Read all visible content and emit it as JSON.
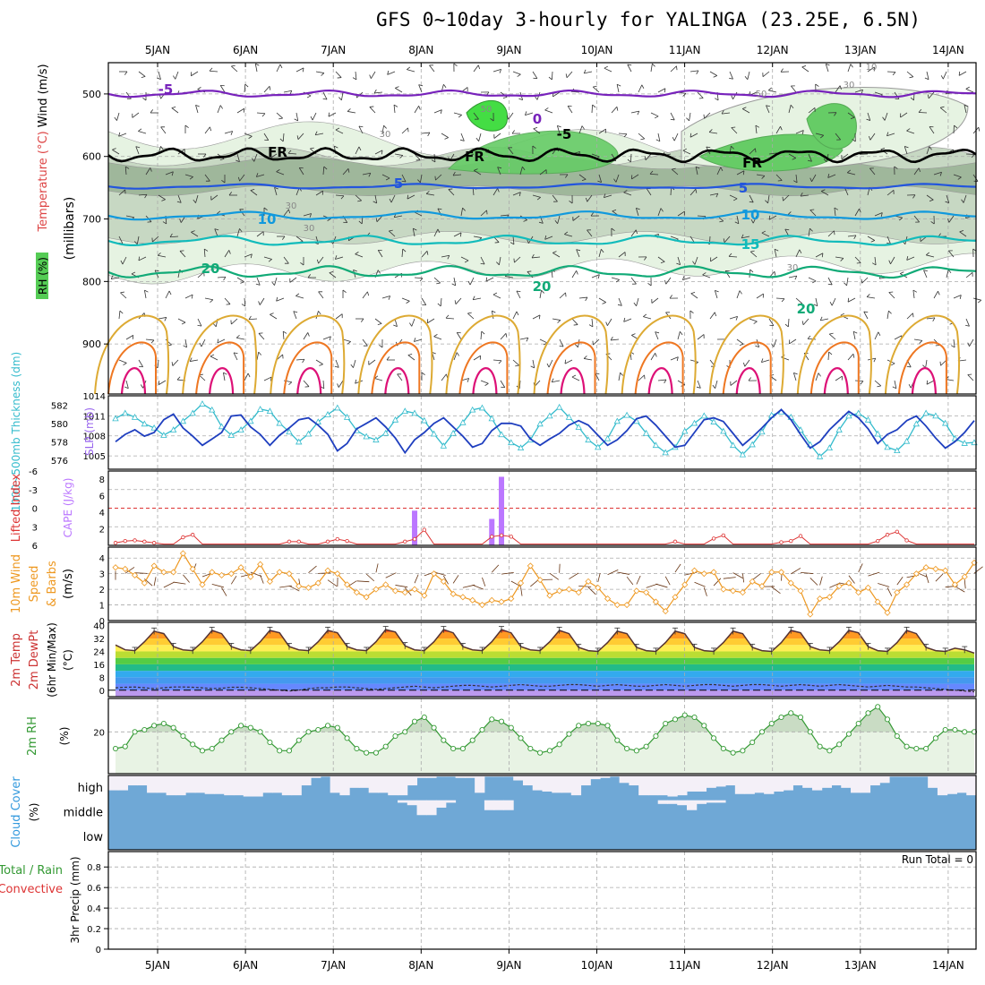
{
  "title": "GFS 0~10day 3-hourly for YALINGA (23.25E, 6.5N)",
  "colors": {
    "rh_light": "#e6f3e2",
    "rh_mid": "#c7d8c3",
    "rh_dark": "#9fb79b",
    "rh_green": "#66cc66",
    "rh_bright": "#44dd44",
    "thickness": "#1f3fbf",
    "slp": "#33bbcc",
    "li": "#dd3333",
    "cape": "#bb77ff",
    "wind10": "#ee9922",
    "rh2m": "#339933",
    "cloud": "#6fa8d6",
    "cloud_clear": "#f4f0f8"
  },
  "chart_data": [
    {
      "panel": "upper-air",
      "type": "contour",
      "x_ticks": [
        "5JAN",
        "6JAN",
        "7JAN",
        "8JAN",
        "9JAN",
        "10JAN",
        "11JAN",
        "12JAN",
        "13JAN",
        "14JAN"
      ],
      "ylabel_parts": [
        "RH (%)",
        "Temperature (°C)",
        "Wind (m/s)",
        "(millibars)"
      ],
      "y_ticks": [
        500,
        600,
        700,
        800,
        900
      ],
      "ylim": [
        1000,
        450
      ],
      "isotherm_labels": [
        "-5",
        "0",
        "-5",
        "FR",
        "FR",
        "FR",
        "5",
        "5",
        "10",
        "10",
        "15",
        "20",
        "20",
        "20"
      ],
      "rh_labels": [
        "30",
        "30",
        "30",
        "50",
        "50",
        "30",
        "10",
        "30"
      ]
    },
    {
      "panel": "thickness-slp",
      "type": "line",
      "ylabel_left": "1000~500mb Thickness (dm)",
      "ylabel_right": "SLP (mb)",
      "thickness_ticks": [
        576,
        578,
        580,
        582
      ],
      "slp_ticks": [
        1005,
        1008,
        1011,
        1014
      ],
      "series": [
        {
          "name": "1000~500mb Thickness (dm)",
          "values": [
            578.0,
            578.8,
            579.3,
            578.6,
            579.0,
            580.4,
            581.0,
            579.5,
            578.6,
            577.6,
            578.3,
            579.0,
            580.8,
            580.9,
            579.6,
            578.8,
            577.6,
            578.7,
            579.5,
            580.4,
            580.6,
            579.8,
            578.8,
            577.0,
            577.8,
            579.4,
            580.0,
            580.6,
            579.6,
            578.4,
            576.8,
            578.2,
            579.0,
            580.0,
            580.6,
            579.6,
            578.6,
            577.4,
            577.8,
            579.2,
            580.0,
            580.0,
            579.7,
            578.3,
            577.6,
            578.3,
            578.9,
            579.8,
            580.3,
            579.8,
            578.7,
            577.6,
            578.2,
            579.2,
            580.5,
            580.8,
            579.8,
            578.6,
            577.4,
            577.6,
            579.0,
            580.4,
            580.6,
            580.2,
            578.9,
            577.6,
            578.5,
            579.5,
            580.6,
            581.5,
            580.4,
            578.8,
            577.3,
            578.0,
            579.3,
            580.3,
            581.3,
            580.6,
            579.4,
            577.8,
            578.8,
            579.3,
            580.3,
            580.8,
            579.7,
            578.4,
            577.3,
            578.0,
            579.0,
            580.3
          ]
        },
        {
          "name": "SLP (mb)",
          "values": [
            1010.6,
            1011.4,
            1010.8,
            1009.8,
            1009.2,
            1008.1,
            1008.9,
            1010.2,
            1011.4,
            1012.8,
            1011.9,
            1009.4,
            1008.1,
            1008.9,
            1010.2,
            1012.0,
            1011.7,
            1009.9,
            1008.6,
            1007.1,
            1008.3,
            1010.1,
            1011.2,
            1012.2,
            1010.8,
            1008.8,
            1007.9,
            1007.4,
            1008.4,
            1010.4,
            1011.7,
            1011.4,
            1010.3,
            1008.3,
            1006.5,
            1008.4,
            1010.0,
            1011.9,
            1012.2,
            1010.6,
            1008.2,
            1007.0,
            1006.2,
            1007.4,
            1009.8,
            1011.0,
            1012.3,
            1010.8,
            1009.3,
            1007.4,
            1006.3,
            1007.6,
            1010.2,
            1011.1,
            1010.2,
            1008.4,
            1006.6,
            1005.5,
            1006.3,
            1008.7,
            1009.9,
            1011.0,
            1010.1,
            1008.7,
            1006.6,
            1005.2,
            1006.7,
            1008.6,
            1011.1,
            1011.6,
            1010.8,
            1008.9,
            1006.7,
            1004.9,
            1006.2,
            1008.9,
            1011.0,
            1011.4,
            1010.4,
            1008.3,
            1006.3,
            1005.8,
            1007.2,
            1009.8,
            1011.4,
            1011.0,
            1009.9,
            1007.6,
            1006.9,
            1007.0
          ]
        }
      ]
    },
    {
      "panel": "li-cape",
      "type": "bar",
      "ylabel_left": "Lifted Index",
      "ylabel_right": "CAPE (J/kg)",
      "li_ticks": [
        "-6",
        "-3",
        "0",
        "3",
        "6"
      ],
      "cape_ticks": [
        "2",
        "4",
        "6",
        "8"
      ],
      "cape_values": [
        {
          "x_index": 31,
          "value": 4.2
        },
        {
          "x_index": 39,
          "value": 3.2
        },
        {
          "x_index": 40,
          "value": 8.3
        }
      ],
      "li_values": [
        5.6,
        5.3,
        5.2,
        5.4,
        5.6,
        5.8,
        5.8,
        4.7,
        4.3,
        5.8,
        5.8,
        5.8,
        5.8,
        5.8,
        5.8,
        5.8,
        5.8,
        5.8,
        5.4,
        5.4,
        5.8,
        5.8,
        5.4,
        5.0,
        5.3,
        5.8,
        5.8,
        5.8,
        5.8,
        5.8,
        5.4,
        5.0,
        3.5,
        5.8,
        5.8,
        5.8,
        5.8,
        5.8,
        5.8,
        4.6,
        4.4,
        4.6,
        5.8,
        5.8,
        5.8,
        5.8,
        5.8,
        5.8,
        5.8,
        5.8,
        5.8,
        5.8,
        5.8,
        5.8,
        5.8,
        5.8,
        5.8,
        5.8,
        5.4,
        5.8,
        5.8,
        5.8,
        4.9,
        4.4,
        5.8,
        5.8,
        5.8,
        5.8,
        5.8,
        5.5,
        5.3,
        4.5,
        5.8,
        5.8,
        5.8,
        5.8,
        5.8,
        5.8,
        5.8,
        5.3,
        4.3,
        3.8,
        5.2,
        5.8,
        5.8,
        5.8,
        5.8,
        5.8,
        5.8,
        5.8
      ]
    },
    {
      "panel": "wind10m",
      "type": "line",
      "ylabel": "10m Wind Speed & Barbs (m/s)",
      "y_ticks": [
        "0",
        "1",
        "2",
        "3",
        "4"
      ],
      "ylim": [
        0,
        5
      ],
      "values": [
        3.4,
        3.3,
        2.9,
        2.4,
        3.5,
        3.1,
        3.1,
        4.3,
        3.3,
        2.3,
        3.1,
        2.9,
        3.0,
        3.4,
        2.8,
        3.6,
        2.5,
        3.1,
        3.0,
        2.2,
        2.1,
        2.4,
        3.2,
        3.0,
        2.3,
        1.8,
        1.5,
        2.0,
        2.3,
        1.9,
        1.8,
        2.0,
        1.6,
        3.0,
        2.5,
        1.7,
        1.5,
        1.3,
        1.0,
        1.3,
        1.2,
        1.4,
        2.4,
        3.5,
        2.6,
        1.6,
        1.9,
        2.0,
        1.8,
        2.5,
        2.1,
        1.4,
        1.0,
        1.0,
        1.9,
        1.8,
        1.2,
        0.6,
        1.5,
        2.3,
        3.2,
        3.0,
        3.1,
        2.0,
        1.9,
        1.8,
        2.5,
        2.2,
        3.1,
        3.1,
        2.4,
        1.9,
        0.4,
        1.4,
        1.5,
        2.2,
        2.4,
        1.8,
        2.1,
        1.2,
        0.5,
        1.8,
        2.3,
        3.0,
        3.4,
        3.3,
        3.2,
        2.3,
        2.8,
        3.7
      ]
    },
    {
      "panel": "temp-dewpt",
      "type": "area",
      "ylabel": "2m Temp 2m DewPt (6hr Min/Max) (°C)",
      "y_ticks": [
        "0",
        "8",
        "16",
        "24",
        "32",
        "40"
      ],
      "ylim": [
        -4,
        42
      ],
      "temp_values": [
        28.0,
        25.0,
        24.5,
        30.0,
        36.5,
        35.0,
        27.0,
        25.0,
        24.5,
        30.0,
        37.0,
        35.0,
        27.0,
        25.0,
        24.5,
        30.0,
        37.0,
        35.5,
        27.0,
        25.0,
        24.5,
        30.0,
        37.0,
        35.5,
        27.0,
        25.0,
        24.5,
        30.0,
        37.5,
        36.0,
        27.5,
        25.0,
        24.5,
        30.0,
        37.5,
        35.5,
        27.0,
        25.0,
        24.5,
        30.0,
        37.5,
        35.5,
        27.0,
        25.0,
        24.5,
        30.0,
        37.0,
        35.0,
        26.5,
        24.5,
        24.0,
        29.5,
        36.5,
        35.0,
        26.5,
        24.5,
        24.0,
        29.5,
        36.5,
        35.0,
        26.5,
        24.5,
        24.0,
        29.5,
        36.5,
        35.0,
        26.5,
        24.5,
        24.0,
        29.5,
        37.0,
        35.5,
        27.0,
        25.0,
        24.5,
        30.0,
        37.0,
        35.5,
        27.0,
        24.5,
        24.0,
        29.5,
        37.0,
        35.0,
        26.5,
        24.5,
        24.0,
        26.0,
        25.0,
        23.0
      ],
      "dewpt_values": [
        1.5,
        1.8,
        2.0,
        1.5,
        1.0,
        1.5,
        2.0,
        2.0,
        1.8,
        1.5,
        1.0,
        1.2,
        1.8,
        1.8,
        1.5,
        1.0,
        0.5,
        0.0,
        -0.5,
        0.0,
        1.0,
        1.5,
        1.5,
        2.0,
        2.0,
        1.5,
        1.0,
        0.5,
        1.0,
        1.5,
        2.0,
        2.5,
        2.0,
        1.5,
        2.0,
        2.5,
        3.0,
        3.0,
        2.5,
        2.0,
        2.5,
        3.0,
        3.5,
        3.0,
        2.5,
        2.5,
        3.0,
        3.5,
        3.5,
        3.0,
        2.5,
        3.0,
        3.5,
        3.0,
        2.5,
        2.5,
        3.0,
        3.5,
        3.0,
        2.5,
        3.0,
        3.5,
        3.5,
        3.0,
        2.5,
        3.0,
        3.5,
        3.5,
        3.0,
        2.5,
        3.0,
        3.5,
        3.0,
        2.5,
        3.0,
        3.5,
        3.0,
        2.5,
        2.0,
        2.5,
        3.0,
        2.5,
        2.0,
        2.0,
        1.5,
        1.0,
        0.5,
        0.0,
        -0.5,
        -1.0
      ]
    },
    {
      "panel": "rh2m",
      "type": "line",
      "ylabel": "2m RH (%)",
      "y_ticks": [
        "20"
      ],
      "ylim": [
        0,
        36
      ],
      "values": [
        12,
        13,
        20,
        21,
        23,
        24,
        22,
        18,
        14,
        11,
        12,
        16,
        20,
        23,
        22,
        20,
        15,
        11,
        11,
        16,
        20,
        21,
        23,
        22,
        17,
        12,
        10,
        10,
        13,
        18,
        20,
        25,
        27,
        22,
        16,
        12,
        12,
        16,
        21,
        26,
        25,
        22,
        17,
        12,
        10,
        11,
        14,
        19,
        23,
        24,
        24,
        23,
        16,
        12,
        11,
        13,
        18,
        24,
        26,
        28,
        27,
        23,
        17,
        12,
        10,
        11,
        15,
        20,
        24,
        27,
        29,
        27,
        20,
        13,
        11,
        14,
        19,
        24,
        29,
        32,
        26,
        18,
        13,
        12,
        12,
        17,
        21,
        21,
        20,
        20
      ]
    },
    {
      "panel": "cloud-cover",
      "type": "area",
      "ylabel": "Cloud Cover (%)",
      "layers": [
        "high",
        "middle",
        "low"
      ],
      "high": [
        0.4,
        0.4,
        0.6,
        0.6,
        0.3,
        0.3,
        0.2,
        0.2,
        0.3,
        0.3,
        0.25,
        0.25,
        0.2,
        0.2,
        0.15,
        0.15,
        0.3,
        0.3,
        0.2,
        0.2,
        0.6,
        0.9,
        0.95,
        0.3,
        0.2,
        0.5,
        0.5,
        0.3,
        0.3,
        0.2,
        0.2,
        0.6,
        0.9,
        0.9,
        0.95,
        0.95,
        0.9,
        0.9,
        0.3,
        0.95,
        0.95,
        0.95,
        0.8,
        0.6,
        0.4,
        0.35,
        0.3,
        0.3,
        0.2,
        0.6,
        0.85,
        0.9,
        0.95,
        0.7,
        0.6,
        0.2,
        0.2,
        0.2,
        0.15,
        0.2,
        0.35,
        0.35,
        0.5,
        0.55,
        0.6,
        0.25,
        0.25,
        0.3,
        0.25,
        0.35,
        0.4,
        0.6,
        0.5,
        0.4,
        0.5,
        0.6,
        0.5,
        0.3,
        0.3,
        0.6,
        0.7,
        0.95,
        0.95,
        0.95,
        0.95,
        0.5,
        0.2,
        0.25,
        0.3,
        0.2
      ],
      "middle": [
        0,
        0,
        0,
        0,
        0,
        0,
        0,
        0,
        0,
        0,
        0,
        0,
        0,
        0,
        0,
        0,
        0,
        0,
        0,
        0,
        0,
        0,
        0,
        0,
        0,
        0,
        0,
        0,
        0,
        0,
        0.1,
        0.2,
        0.6,
        0.6,
        0.3,
        0.1,
        0,
        0,
        0,
        0.4,
        0.4,
        0.4,
        0,
        0,
        0,
        0,
        0,
        0,
        0,
        0,
        0,
        0,
        0,
        0,
        0,
        0,
        0,
        0.15,
        0.15,
        0.2,
        0.4,
        0.15,
        0.1,
        0.1,
        0,
        0,
        0,
        0,
        0,
        0,
        0,
        0,
        0,
        0,
        0,
        0,
        0,
        0,
        0,
        0,
        0,
        0,
        0,
        0,
        0,
        0,
        0,
        0,
        0,
        0
      ],
      "low": [
        0,
        0,
        0,
        0,
        0,
        0,
        0,
        0,
        0,
        0,
        0,
        0,
        0,
        0,
        0,
        0,
        0,
        0,
        0,
        0,
        0,
        0,
        0,
        0,
        0,
        0,
        0,
        0,
        0,
        0,
        0,
        0,
        0,
        0,
        0,
        0,
        0,
        0,
        0,
        0,
        0,
        0,
        0,
        0,
        0,
        0,
        0,
        0,
        0,
        0,
        0,
        0,
        0,
        0,
        0,
        0,
        0,
        0,
        0,
        0,
        0,
        0,
        0,
        0,
        0,
        0,
        0,
        0,
        0,
        0,
        0,
        0,
        0,
        0,
        0,
        0,
        0,
        0,
        0,
        0,
        0,
        0,
        0,
        0,
        0,
        0,
        0,
        0,
        0,
        0
      ]
    },
    {
      "panel": "precip",
      "type": "bar",
      "ylabel_parts": [
        "Total / Rain",
        "Convective",
        "3hr Precip (mm)"
      ],
      "y_ticks": [
        "0",
        "0.2",
        "0.4",
        "0.6",
        "0.8"
      ],
      "ylim": [
        0,
        0.95
      ],
      "run_total": "Run Total = 0",
      "values": []
    }
  ]
}
